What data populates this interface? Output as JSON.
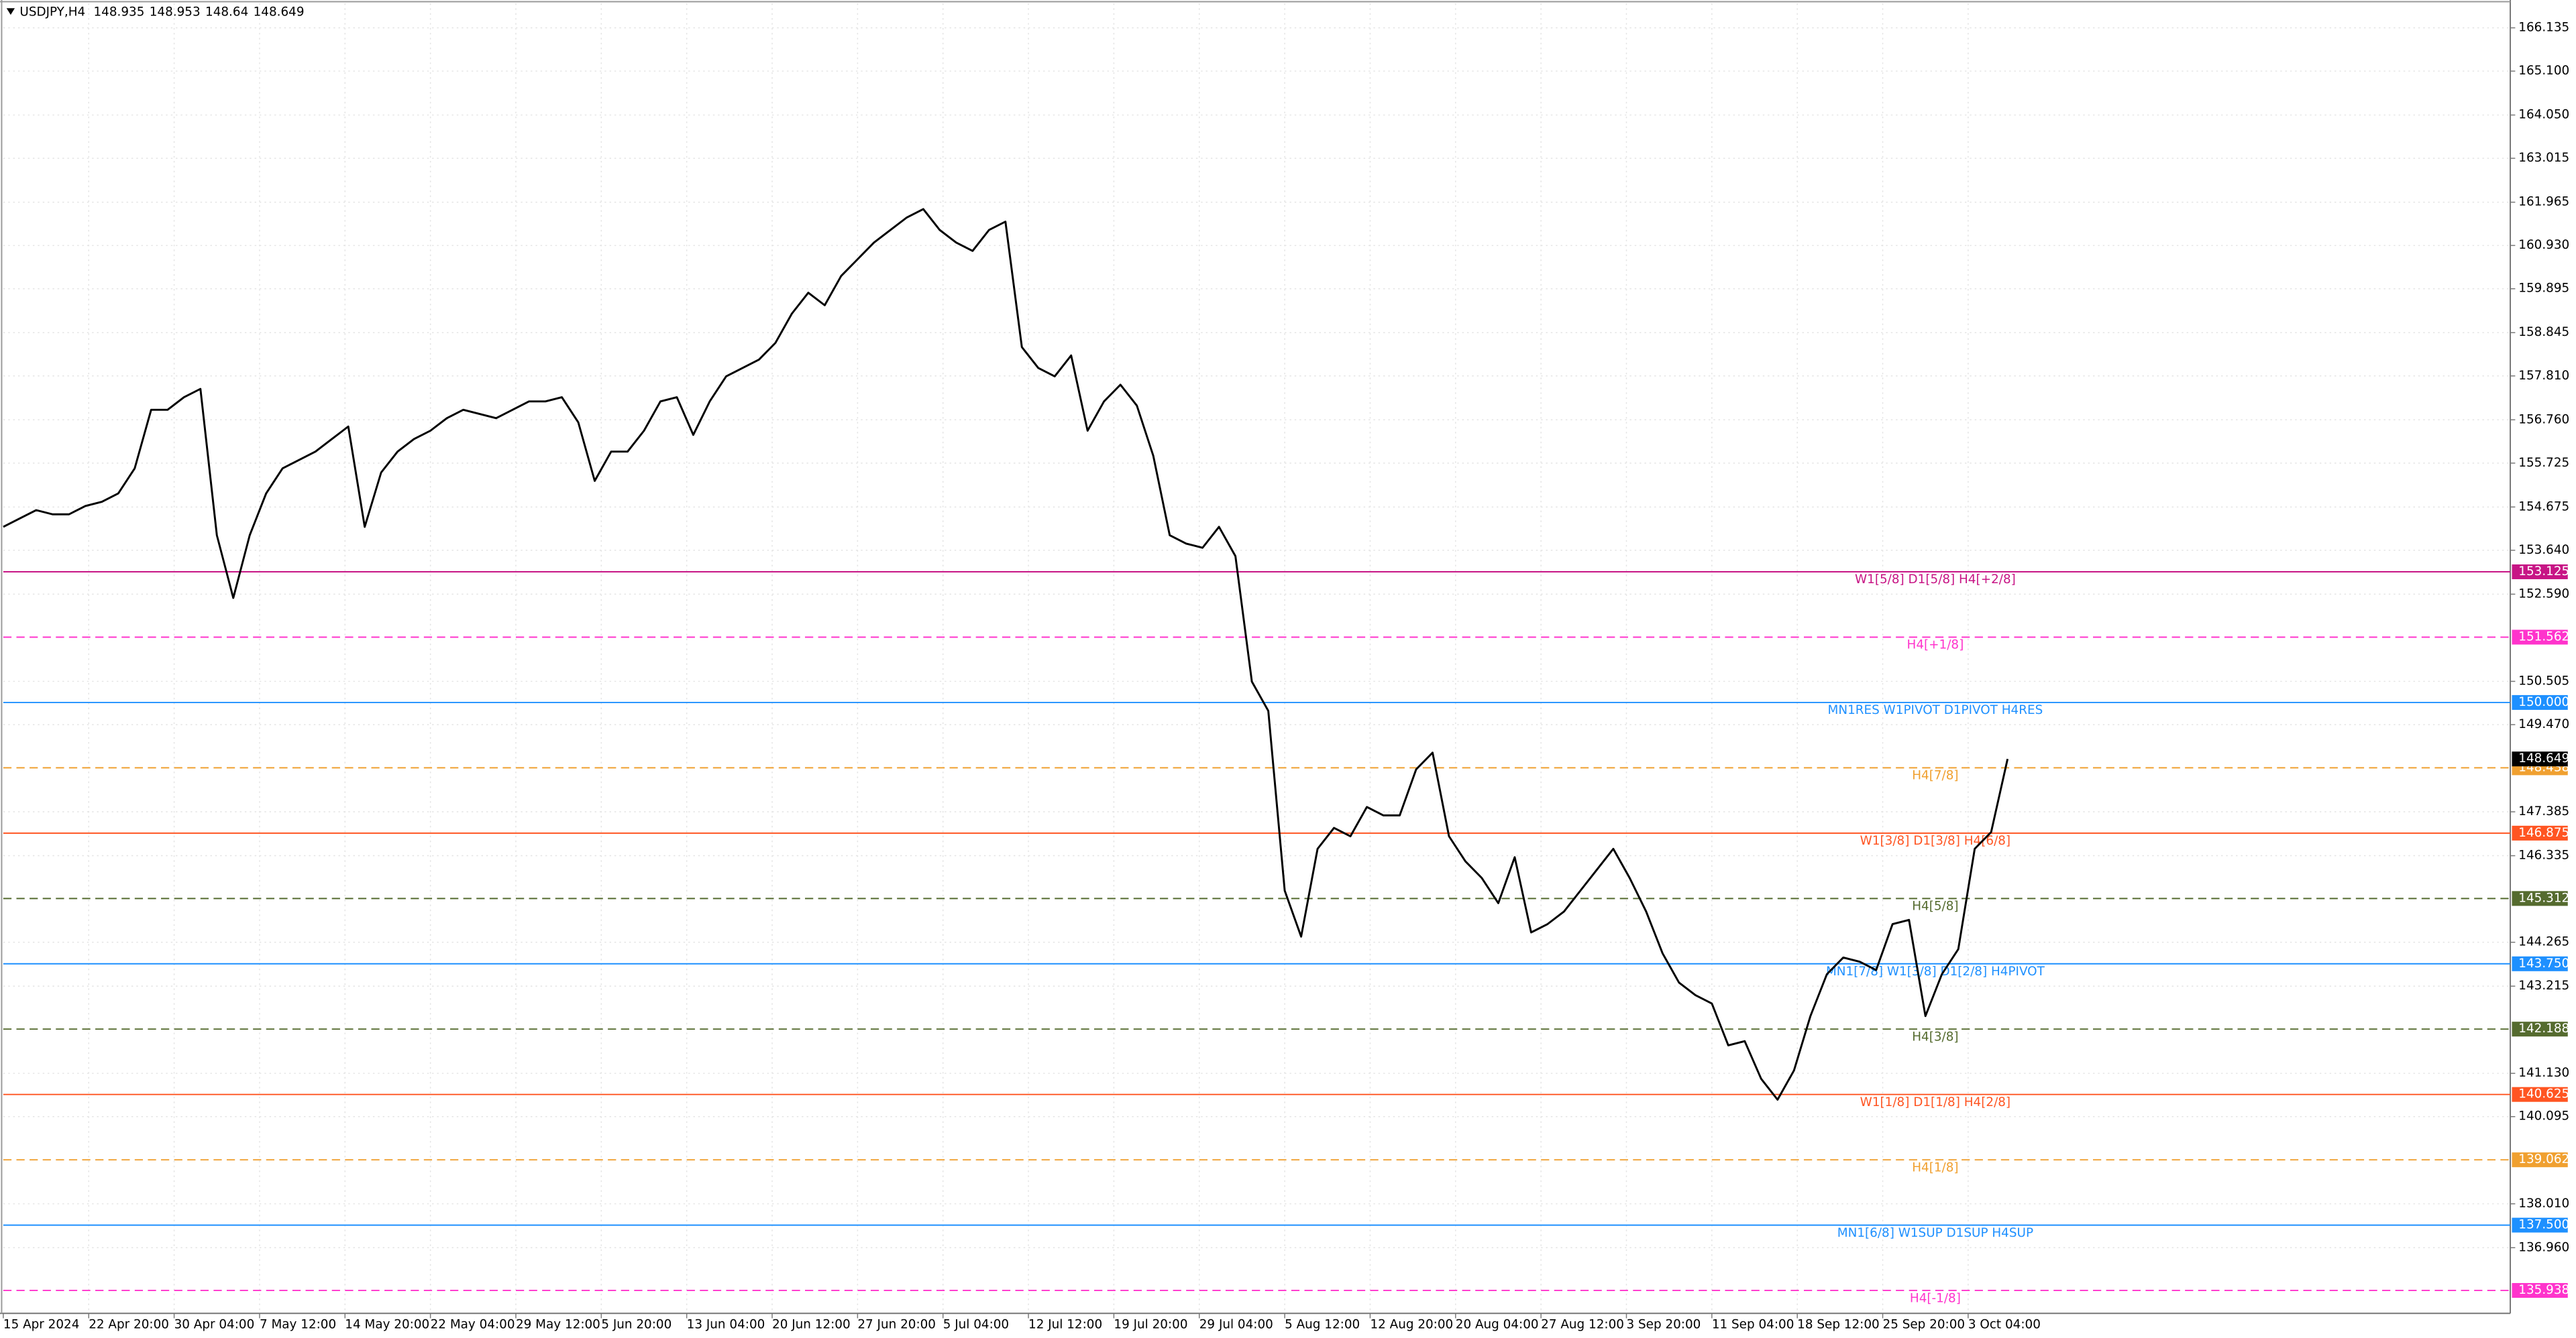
{
  "chart_data": {
    "type": "line",
    "symbol": "USDJPY,H4",
    "header_prices": [
      148.935,
      148.953,
      148.64,
      148.649
    ],
    "current_price": 148.649,
    "color": "#000000",
    "grid": true,
    "ylim": [
      135.39,
      166.8
    ],
    "yticks": [
      {
        "value": 166.135,
        "label": "166.135"
      },
      {
        "value": 165.1,
        "label": "165.100"
      },
      {
        "value": 164.05,
        "label": "164.050"
      },
      {
        "value": 163.015,
        "label": "163.015"
      },
      {
        "value": 161.965,
        "label": "161.965"
      },
      {
        "value": 160.93,
        "label": "160.930"
      },
      {
        "value": 159.895,
        "label": "159.895"
      },
      {
        "value": 158.845,
        "label": "158.845"
      },
      {
        "value": 157.81,
        "label": "157.810"
      },
      {
        "value": 156.76,
        "label": "156.760"
      },
      {
        "value": 155.725,
        "label": "155.725"
      },
      {
        "value": 154.675,
        "label": "154.675"
      },
      {
        "value": 153.64,
        "label": "153.640"
      },
      {
        "value": 152.59,
        "label": "152.590"
      },
      {
        "value": 150.505,
        "label": "150.505"
      },
      {
        "value": 149.47,
        "label": "149.470"
      },
      {
        "value": 147.385,
        "label": "147.385"
      },
      {
        "value": 146.335,
        "label": "146.335"
      },
      {
        "value": 144.265,
        "label": "144.265"
      },
      {
        "value": 143.215,
        "label": "143.215"
      },
      {
        "value": 141.13,
        "label": "141.130"
      },
      {
        "value": 140.095,
        "label": "140.095"
      },
      {
        "value": 138.01,
        "label": "138.010"
      },
      {
        "value": 136.96,
        "label": "136.960"
      }
    ],
    "x_labels": [
      "15 Apr 2024",
      "22 Apr 20:00",
      "30 Apr 04:00",
      "7 May 12:00",
      "14 May 20:00",
      "22 May 04:00",
      "29 May 12:00",
      "5 Jun 20:00",
      "13 Jun 04:00",
      "20 Jun 12:00",
      "27 Jun 20:00",
      "5 Jul 04:00",
      "12 Jul 12:00",
      "19 Jul 20:00",
      "29 Jul 04:00",
      "5 Aug 12:00",
      "12 Aug 20:00",
      "20 Aug 04:00",
      "27 Aug 12:00",
      "3 Sep 20:00",
      "11 Sep 04:00",
      "18 Sep 12:00",
      "25 Sep 20:00",
      "3 Oct 04:00"
    ],
    "values": [
      154.2,
      154.4,
      154.6,
      154.5,
      154.5,
      154.7,
      154.8,
      155.0,
      155.6,
      157.0,
      157.0,
      157.3,
      157.5,
      154.0,
      152.5,
      154.0,
      155.0,
      155.6,
      155.8,
      156.0,
      156.3,
      156.6,
      154.2,
      155.5,
      156.0,
      156.3,
      156.5,
      156.8,
      157.0,
      156.9,
      156.8,
      157.0,
      157.2,
      157.2,
      157.3,
      156.7,
      155.3,
      156.0,
      156.0,
      156.5,
      157.2,
      157.3,
      156.4,
      157.2,
      157.8,
      158.0,
      158.2,
      158.6,
      159.3,
      159.8,
      159.5,
      160.2,
      160.6,
      161.0,
      161.3,
      161.6,
      161.8,
      161.3,
      161.0,
      160.8,
      161.3,
      161.5,
      158.5,
      158.0,
      157.8,
      158.3,
      156.5,
      157.2,
      157.6,
      157.1,
      155.9,
      154.0,
      153.8,
      153.7,
      154.2,
      153.5,
      150.5,
      149.8,
      145.5,
      144.4,
      146.5,
      147.0,
      146.8,
      147.5,
      147.3,
      147.3,
      148.4,
      148.8,
      146.8,
      146.2,
      145.8,
      145.2,
      146.3,
      144.5,
      144.7,
      145.0,
      145.5,
      146.0,
      146.5,
      145.8,
      145.0,
      144.0,
      143.3,
      143.0,
      142.8,
      141.8,
      141.9,
      141.0,
      140.5,
      141.2,
      142.5,
      143.5,
      143.9,
      143.8,
      143.6,
      144.7,
      144.8,
      142.5,
      143.5,
      144.1,
      146.5,
      146.9,
      148.649
    ],
    "levels": [
      {
        "price": {
          "value": 153.125,
          "label": "153.125"
        },
        "text": "W1[5/8] D1[5/8] H4[+2/8]",
        "color": "#c71585",
        "dashed": false
      },
      {
        "price": {
          "value": 151.562,
          "label": "151.562"
        },
        "text": "H4[+1/8]",
        "color": "#ff33cc",
        "dashed": true
      },
      {
        "price": {
          "value": 150.0,
          "label": "150.000"
        },
        "text": "MN1RES W1PIVOT D1PIVOT H4RES",
        "color": "#1e90ff",
        "dashed": false
      },
      {
        "price": {
          "value": 148.438,
          "label": "148.438"
        },
        "text": "H4[7/8]",
        "color": "#f0a030",
        "dashed": true
      },
      {
        "price": {
          "value": 146.875,
          "label": "146.875"
        },
        "text": "W1[3/8] D1[3/8] H4[6/8]",
        "color": "#ff5522",
        "dashed": false
      },
      {
        "price": {
          "value": 145.312,
          "label": "145.312"
        },
        "text": "H4[5/8]",
        "color": "#556b2f",
        "dashed": true
      },
      {
        "price": {
          "value": 143.75,
          "label": "143.750"
        },
        "text": "MN1[7/8] W1[3/8] D1[2/8] H4PIVOT",
        "color": "#1e90ff",
        "dashed": false
      },
      {
        "price": {
          "value": 142.188,
          "label": "142.188"
        },
        "text": "H4[3/8]",
        "color": "#556b2f",
        "dashed": true
      },
      {
        "price": {
          "value": 140.625,
          "label": "140.625"
        },
        "text": "W1[1/8] D1[1/8] H4[2/8]",
        "color": "#ff5522",
        "dashed": false
      },
      {
        "price": {
          "value": 139.062,
          "label": "139.062"
        },
        "text": "H4[1/8]",
        "color": "#f0a030",
        "dashed": true
      },
      {
        "price": {
          "value": 137.5,
          "label": "137.500"
        },
        "text": "MN1[6/8] W1SUP D1SUP H4SUP",
        "color": "#1e90ff",
        "dashed": false
      },
      {
        "price": {
          "value": 135.938,
          "label": "135.938"
        },
        "text": "H4[-1/8]",
        "color": "#ff33cc",
        "dashed": true
      }
    ]
  }
}
